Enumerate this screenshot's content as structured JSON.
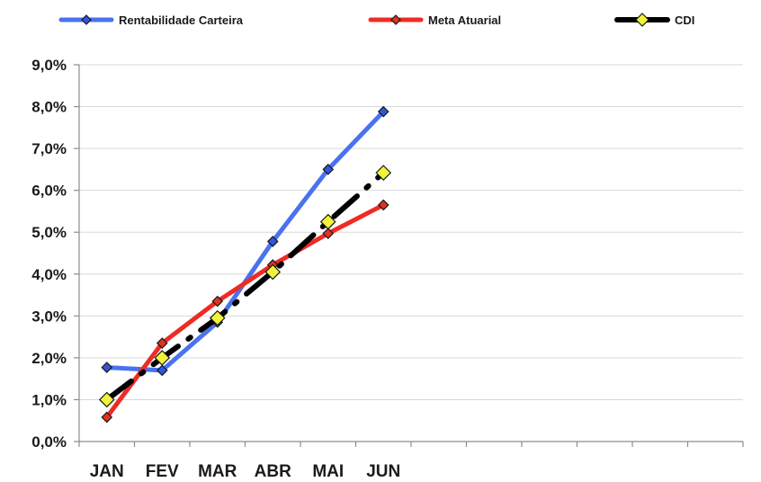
{
  "chart_data": {
    "type": "line",
    "title": "",
    "xlabel": "",
    "ylabel": "",
    "categories": [
      "JAN",
      "FEV",
      "MAR",
      "ABR",
      "MAI",
      "JUN"
    ],
    "x_slots": 12,
    "ylim": [
      0,
      9
    ],
    "y_ticks": [
      "0,0%",
      "1,0%",
      "2,0%",
      "3,0%",
      "4,0%",
      "5,0%",
      "6,0%",
      "7,0%",
      "8,0%",
      "9,0%"
    ],
    "grid": true,
    "legend_position": "top",
    "series": [
      {
        "name": "Rentabilidade Carteira",
        "color": "#4a72f0",
        "marker_fill": "#3355dd",
        "dash": "solid",
        "values": [
          1.77,
          1.7,
          2.85,
          4.78,
          6.5,
          7.88
        ]
      },
      {
        "name": "Meta Atuarial",
        "color": "#ee2b24",
        "marker_fill": "#dd3322",
        "dash": "solid",
        "values": [
          0.58,
          2.35,
          3.35,
          4.22,
          4.97,
          5.65
        ]
      },
      {
        "name": "CDI",
        "color": "#000000",
        "marker_fill": "#f2f23a",
        "dash": "dashdot",
        "values": [
          1.0,
          2.0,
          2.95,
          4.05,
          5.25,
          6.42
        ]
      }
    ]
  }
}
